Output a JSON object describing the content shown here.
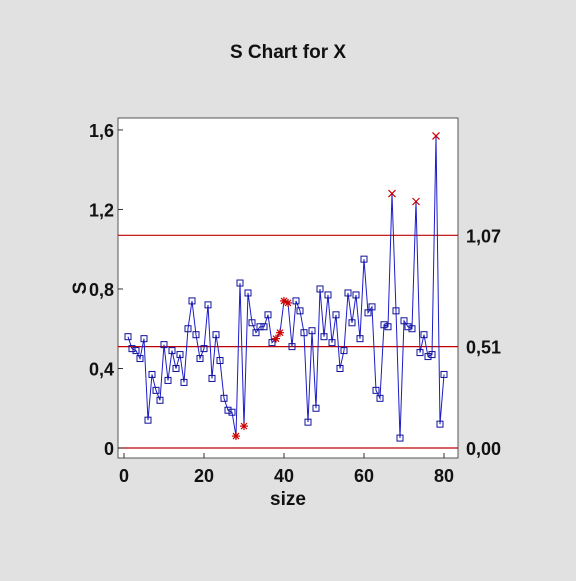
{
  "chart_data": {
    "type": "line",
    "title": "S Chart for X",
    "xlabel": "size",
    "ylabel": "S",
    "xlim": [
      0,
      82
    ],
    "ylim": [
      0,
      1.64
    ],
    "x_ticks": [
      0,
      20,
      40,
      60,
      80
    ],
    "x_tick_labels": [
      "0",
      "20",
      "40",
      "60",
      "80"
    ],
    "y_ticks": [
      0,
      0.4,
      0.8,
      1.2,
      1.6
    ],
    "y_tick_labels": [
      "0",
      "0,4",
      "0,8",
      "1,2",
      "1,6"
    ],
    "control_limits": [
      {
        "name": "UCL",
        "value": 1.07,
        "label": "1,07"
      },
      {
        "name": "CL",
        "value": 0.51,
        "label": "0,51"
      },
      {
        "name": "LCL",
        "value": 0.0,
        "label": "0,00"
      }
    ],
    "series": [
      {
        "style": "square-markers",
        "values": [
          0.56,
          0.5,
          0.49,
          0.45,
          0.55,
          0.14,
          0.37,
          0.29,
          0.24,
          0.52,
          0.34,
          0.49,
          0.4,
          0.47,
          0.33,
          0.6,
          0.74,
          0.57,
          0.45,
          0.5,
          0.72,
          0.35,
          0.57,
          0.44,
          0.25,
          0.19,
          0.18,
          0.06,
          0.83,
          0.11,
          0.78,
          0.63,
          0.58,
          0.61,
          0.61,
          0.67,
          0.53,
          0.55,
          0.58,
          0.74,
          0.73,
          0.51,
          0.74,
          0.69,
          0.58,
          0.13,
          0.59,
          0.2,
          0.8,
          0.56,
          0.77,
          0.53,
          0.67,
          0.4,
          0.49,
          0.78,
          0.63,
          0.77,
          0.55,
          0.95,
          0.68,
          0.71,
          0.29,
          0.25,
          0.62,
          0.61,
          1.28,
          0.69,
          0.05,
          0.64,
          0.61,
          0.6,
          1.24,
          0.48,
          0.57,
          0.46,
          0.47,
          1.57,
          0.12,
          0.37
        ]
      }
    ],
    "special_points": [
      {
        "x": 28,
        "y": 0.06,
        "marker": "asterisk"
      },
      {
        "x": 30,
        "y": 0.11,
        "marker": "asterisk"
      },
      {
        "x": 38,
        "y": 0.55,
        "marker": "asterisk"
      },
      {
        "x": 39,
        "y": 0.58,
        "marker": "asterisk"
      },
      {
        "x": 40,
        "y": 0.74,
        "marker": "asterisk"
      },
      {
        "x": 41,
        "y": 0.73,
        "marker": "asterisk"
      },
      {
        "x": 67,
        "y": 1.28,
        "marker": "x"
      },
      {
        "x": 73,
        "y": 1.24,
        "marker": "x"
      },
      {
        "x": 78,
        "y": 1.57,
        "marker": "x"
      }
    ],
    "grid": false,
    "colors": {
      "line": "#1c1cc8",
      "marker": "#10109a",
      "limits": "#c00000",
      "special": "#cc0000"
    }
  }
}
